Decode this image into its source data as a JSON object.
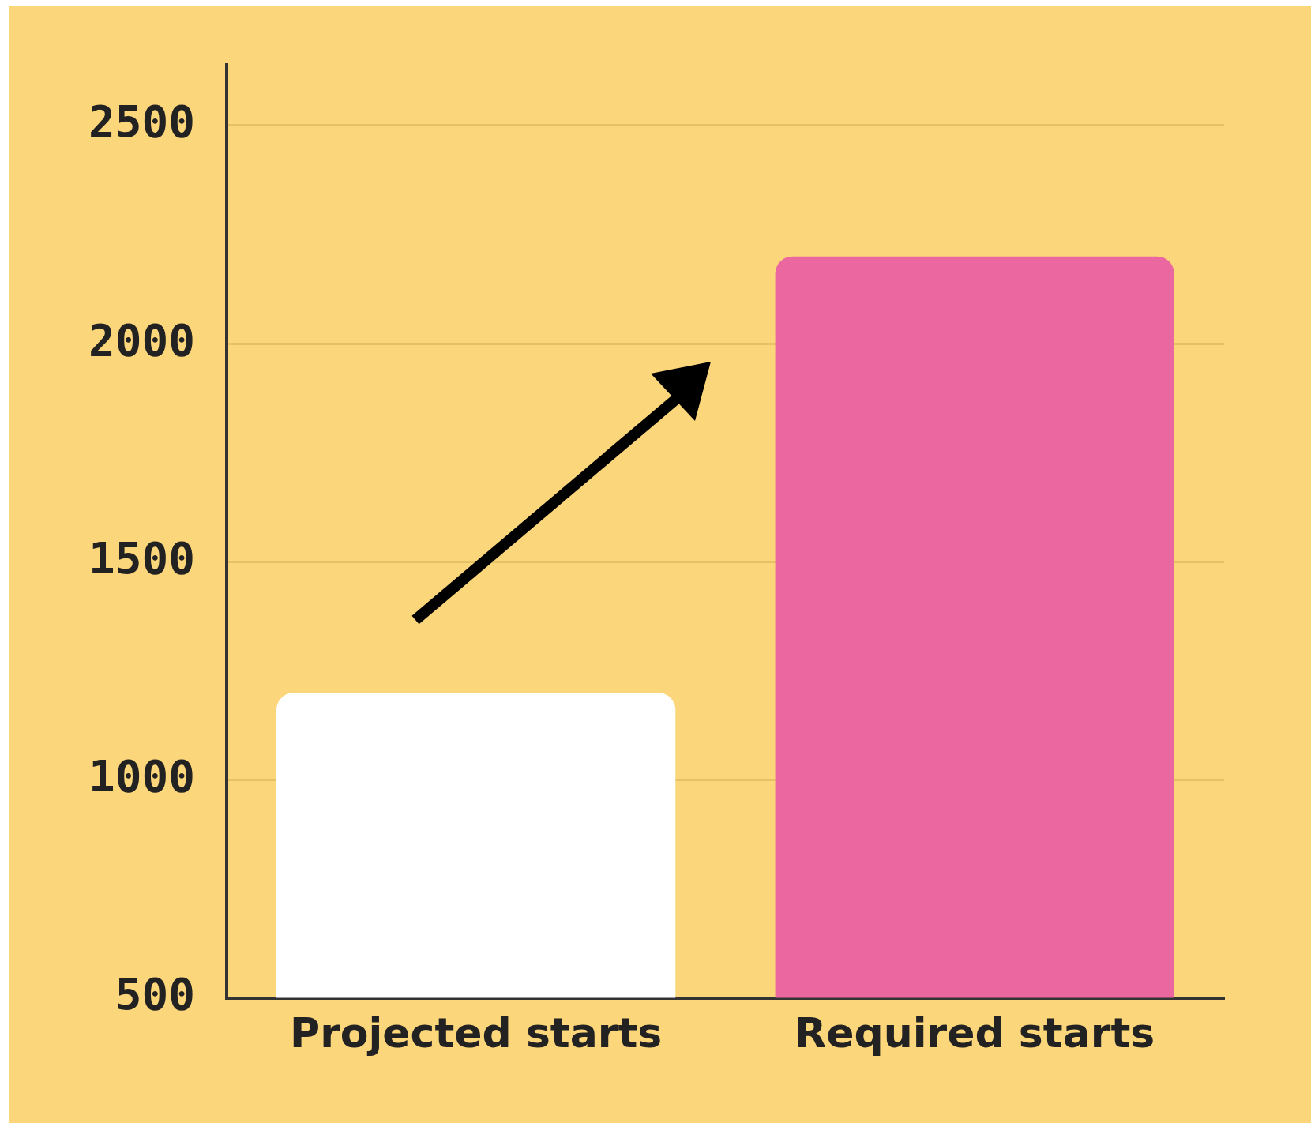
{
  "chart_data": {
    "type": "bar",
    "categories": [
      "Projected starts",
      "Required starts"
    ],
    "values": [
      1200,
      2200
    ],
    "colors": [
      "#ffffff",
      "#ea67a0"
    ],
    "ylim": [
      500,
      2640
    ],
    "yticks": [
      500,
      1000,
      1500,
      2000,
      2500
    ],
    "grid": "y",
    "legend": false
  }
}
